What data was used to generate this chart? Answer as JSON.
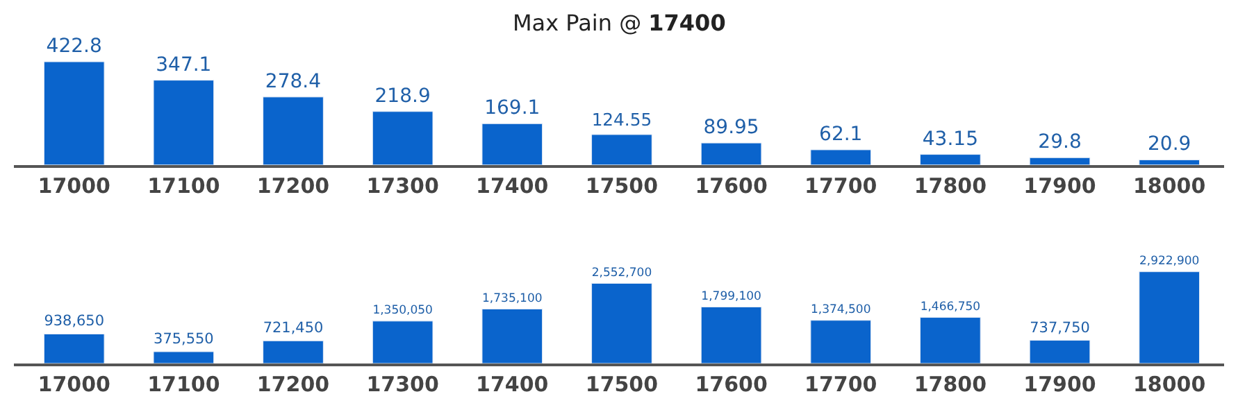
{
  "chart_data": [
    {
      "type": "bar",
      "title": "Max Pain @ 17400",
      "categories": [
        "17000",
        "17100",
        "17200",
        "17300",
        "17400",
        "17500",
        "17600",
        "17700",
        "17800",
        "17900",
        "18000"
      ],
      "values": [
        422.8,
        347.1,
        278.4,
        218.9,
        169.1,
        124.55,
        89.95,
        62.1,
        43.15,
        29.8,
        20.9
      ],
      "color": "#0a64cc",
      "data_labels": true
    },
    {
      "type": "bar",
      "categories": [
        "17000",
        "17100",
        "17200",
        "17300",
        "17400",
        "17500",
        "17600",
        "17700",
        "17800",
        "17900",
        "18000"
      ],
      "values": [
        938650,
        375550,
        721450,
        1350050,
        1735100,
        2552700,
        1799100,
        1374500,
        1466750,
        737750,
        2922900
      ],
      "color": "#0a64cc",
      "value_labels": [
        "938,650",
        "375,550",
        "721,450",
        "1,350,050",
        "1,735,100",
        "2,552,700",
        "1,799,100",
        "1,374,500",
        "1,466,750",
        "737,750",
        "2,922,900"
      ]
    }
  ]
}
